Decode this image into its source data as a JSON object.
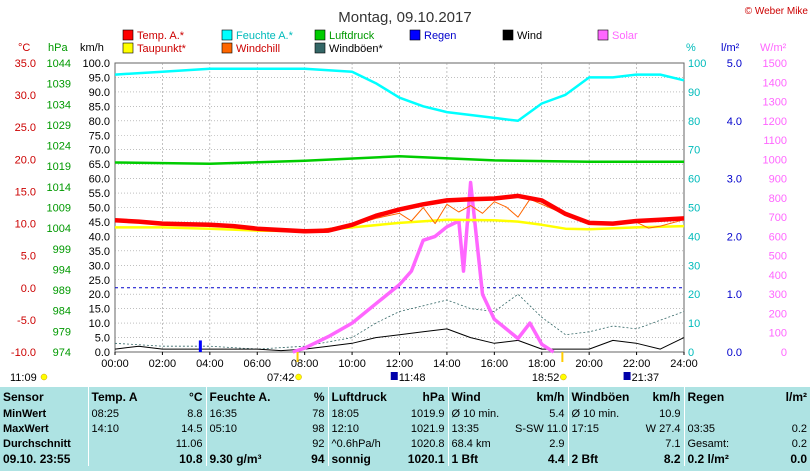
{
  "title": "Montag, 09.10.2017",
  "copyright": "© Weber Mike",
  "colors": {
    "temp": "#ff0000",
    "dew": "#ffff00",
    "humidity": "#00ffff",
    "windchill": "#ff6600",
    "pressure": "#00cc00",
    "rain": "#0000ff",
    "wind": "#000000",
    "gust": "#336666",
    "solar": "#ff66ff",
    "grid": "#999999",
    "temp_axis": "#cc0000",
    "stats_bg": "#aee3e3"
  },
  "legend": [
    {
      "label": "Temp. A.*",
      "color": "#ff0000",
      "textcolor": "#cc0000"
    },
    {
      "label": "Feuchte A.*",
      "color": "#00ffff",
      "textcolor": "#00bbbb"
    },
    {
      "label": "Luftdruck",
      "color": "#00cc00",
      "textcolor": "#009900"
    },
    {
      "label": "Regen",
      "color": "#0000ff",
      "textcolor": "#0000cc"
    },
    {
      "label": "Wind",
      "color": "#000000",
      "textcolor": "#000000"
    },
    {
      "label": "Solar",
      "color": "#ff66ff",
      "textcolor": "#ff66ff"
    },
    {
      "label": "Taupunkt*",
      "color": "#ffff00",
      "textcolor": "#cc0000"
    },
    {
      "label": "Windchill",
      "color": "#ff6600",
      "textcolor": "#cc0000"
    },
    {
      "label": "Windböen*",
      "color": "#336666",
      "textcolor": "#000000"
    }
  ],
  "axis_units": {
    "temp": "°C",
    "pressure": "hPa",
    "wind": "km/h",
    "humidity": "%",
    "rain": "l/m²",
    "solar": "W/m²"
  },
  "chart_data": {
    "type": "line",
    "x_ticks": [
      "00:00",
      "02:00",
      "04:00",
      "06:00",
      "08:00",
      "10:00",
      "12:00",
      "14:00",
      "16:00",
      "18:00",
      "20:00",
      "22:00",
      "24:00"
    ],
    "temp_ticks": [
      "35.0",
      "30.0",
      "25.0",
      "20.0",
      "15.0",
      "10.0",
      "5.0",
      "0.0",
      "-5.0",
      "-10.0"
    ],
    "pressure_ticks": [
      "1044",
      "1039",
      "1034",
      "1029",
      "1024",
      "1019",
      "1014",
      "1009",
      "1004",
      "999",
      "994",
      "989",
      "984",
      "979",
      "974"
    ],
    "wind_ticks": [
      "100.0",
      "95.0",
      "90.0",
      "85.0",
      "80.0",
      "75.0",
      "70.0",
      "65.0",
      "60.0",
      "55.0",
      "50.0",
      "45.0",
      "40.0",
      "35.0",
      "30.0",
      "25.0",
      "20.0",
      "15.0",
      "10.0",
      "5.0",
      "0.0"
    ],
    "humidity_ticks": [
      "100",
      "90",
      "80",
      "70",
      "60",
      "50",
      "40",
      "30",
      "20",
      "10",
      "0"
    ],
    "rain_ticks": [
      "5.0",
      "4.0",
      "3.0",
      "2.0",
      "1.0",
      "0.0"
    ],
    "solar_ticks": [
      "1500",
      "1400",
      "1300",
      "1200",
      "1100",
      "1000",
      "900",
      "800",
      "700",
      "600",
      "500",
      "400",
      "300",
      "200",
      "100",
      "0"
    ],
    "ylim_temp": [
      -10,
      35
    ],
    "ylim_pressure": [
      974,
      1044
    ],
    "ylim_wind": [
      0,
      100
    ],
    "ylim_humidity": [
      0,
      100
    ],
    "ylim_rain": [
      0,
      5
    ],
    "ylim_solar": [
      0,
      1500
    ],
    "series": [
      {
        "name": "Temp. A.*",
        "unit": "°C",
        "x": [
          0,
          1,
          2,
          3,
          4,
          5,
          6,
          7,
          8,
          9,
          10,
          11,
          12,
          13,
          14,
          15,
          16,
          17,
          18,
          19,
          20,
          21,
          22,
          23,
          24
        ],
        "y": [
          10.5,
          10.3,
          10.0,
          9.9,
          9.8,
          9.6,
          9.2,
          9.0,
          8.8,
          8.9,
          9.8,
          11.2,
          12.2,
          13.0,
          13.6,
          13.8,
          13.9,
          14.3,
          13.6,
          11.5,
          10.1,
          10.0,
          10.4,
          10.6,
          10.8
        ]
      },
      {
        "name": "Taupunkt*",
        "unit": "°C",
        "x": [
          0,
          2,
          4,
          6,
          8,
          10,
          12,
          14,
          16,
          17,
          18,
          19,
          20,
          22,
          24
        ],
        "y": [
          9.4,
          9.4,
          9.2,
          8.9,
          8.8,
          9.4,
          10.1,
          10.6,
          10.5,
          10.3,
          9.8,
          9.2,
          9.1,
          9.4,
          9.6
        ]
      },
      {
        "name": "Windchill",
        "unit": "°C",
        "x": [
          0,
          4,
          8,
          10,
          11,
          12,
          12.5,
          13,
          13.5,
          14,
          14.5,
          15,
          15.5,
          16,
          16.5,
          17,
          17.5,
          18,
          19,
          20,
          22,
          22.5,
          23,
          24
        ],
        "y": [
          10.5,
          9.8,
          8.8,
          9.7,
          10.8,
          11.6,
          10.4,
          12.5,
          10.0,
          13.0,
          11.8,
          12.8,
          11.6,
          13.4,
          12.6,
          11.0,
          13.8,
          13.0,
          11.4,
          10.0,
          10.2,
          9.3,
          9.6,
          10.6
        ]
      },
      {
        "name": "Feuchte A.*",
        "unit": "%",
        "x": [
          0,
          2,
          4,
          6,
          8,
          10,
          11,
          12,
          13,
          14,
          15,
          16,
          17,
          18,
          19,
          20,
          21,
          22,
          23,
          24
        ],
        "y": [
          96,
          97,
          98,
          98,
          98,
          97,
          93,
          88,
          85,
          83,
          82,
          81,
          80,
          86,
          89,
          95,
          95,
          96,
          96,
          94
        ]
      },
      {
        "name": "Luftdruck",
        "unit": "hPa",
        "x": [
          0,
          4,
          8,
          12,
          16,
          20,
          24
        ],
        "y": [
          1019.9,
          1019.6,
          1020.3,
          1021.4,
          1020.4,
          1020.1,
          1020.1
        ]
      },
      {
        "name": "Wind",
        "unit": "km/h",
        "x": [
          0,
          1,
          2,
          3,
          4,
          5,
          6,
          7,
          8,
          9,
          10,
          11,
          12,
          13,
          14,
          15,
          16,
          17,
          18,
          19,
          20,
          21,
          22,
          23,
          24
        ],
        "y": [
          1,
          2,
          1,
          1,
          1,
          1,
          1,
          0.5,
          1,
          2,
          3,
          5,
          6,
          7,
          8,
          5,
          3,
          4,
          1,
          1,
          1,
          4,
          3,
          1,
          5
        ]
      },
      {
        "name": "Windböen*",
        "unit": "km/h",
        "x": [
          0,
          2,
          4,
          6,
          8,
          10,
          11,
          12,
          13,
          14,
          15,
          16,
          17,
          18,
          19,
          20,
          21,
          22,
          23,
          24
        ],
        "y": [
          3,
          2,
          2,
          1,
          2,
          5,
          10,
          14,
          16,
          18,
          15,
          14,
          20,
          12,
          6,
          7,
          9,
          8,
          11,
          14
        ]
      },
      {
        "name": "Solar",
        "unit": "W/m²",
        "x": [
          7.5,
          8,
          9,
          10,
          11,
          12,
          12.5,
          13,
          13.5,
          14,
          14.5,
          14.7,
          15,
          15.5,
          16,
          16.5,
          17,
          17.5,
          18,
          18.5
        ],
        "y": [
          0,
          20,
          80,
          150,
          250,
          350,
          420,
          580,
          600,
          650,
          680,
          420,
          880,
          300,
          170,
          120,
          70,
          150,
          40,
          0
        ]
      },
      {
        "name": "Regen",
        "unit": "l/m²",
        "x": [
          3.6
        ],
        "y": [
          0.2
        ]
      }
    ],
    "zero_line_temp": 0,
    "sun_times": [
      {
        "label": "07:42",
        "hour": 7.7
      },
      {
        "label": "18:52",
        "hour": 18.87
      }
    ],
    "moon_times": [
      {
        "label": "11:48",
        "hour": 11.8
      },
      {
        "label": "21:37",
        "hour": 21.62
      }
    ],
    "start_label": "11:09"
  },
  "stats": {
    "header": [
      "Sensor",
      "Temp. A.",
      "°C",
      "Feuchte A.",
      "%",
      "Luftdruck",
      "hPa",
      "Wind",
      "km/h",
      "Windböen",
      "km/h",
      "Regen",
      "l/m²"
    ],
    "rows": [
      [
        "MinWert",
        "08:25",
        "8.8",
        "16:35",
        "78",
        "18:05",
        "1019.9",
        "Ø 10 min.",
        "5.4",
        "Ø 10 min.",
        "10.9",
        "",
        ""
      ],
      [
        "MaxWert",
        "14:10",
        "14.5",
        "05:10",
        "98",
        "12:10",
        "1021.9",
        "13:35",
        "S-SW 11.0",
        "17:15",
        "W 27.4",
        "03:35",
        "0.2"
      ],
      [
        "Durchschnitt",
        "",
        "11.06",
        "",
        "92",
        "^0.6hPa/h",
        "1020.8",
        "68.4 km",
        "2.9",
        "",
        "7.1",
        "Gesamt:",
        "0.2"
      ],
      [
        "09.10. 23:55",
        "",
        "10.8",
        "9.30 g/m³",
        "94",
        "sonnig",
        "1020.1",
        "1 Bft",
        "4.4",
        "2 Bft",
        "8.2",
        "0.2 l/m²",
        "0.0"
      ]
    ]
  }
}
